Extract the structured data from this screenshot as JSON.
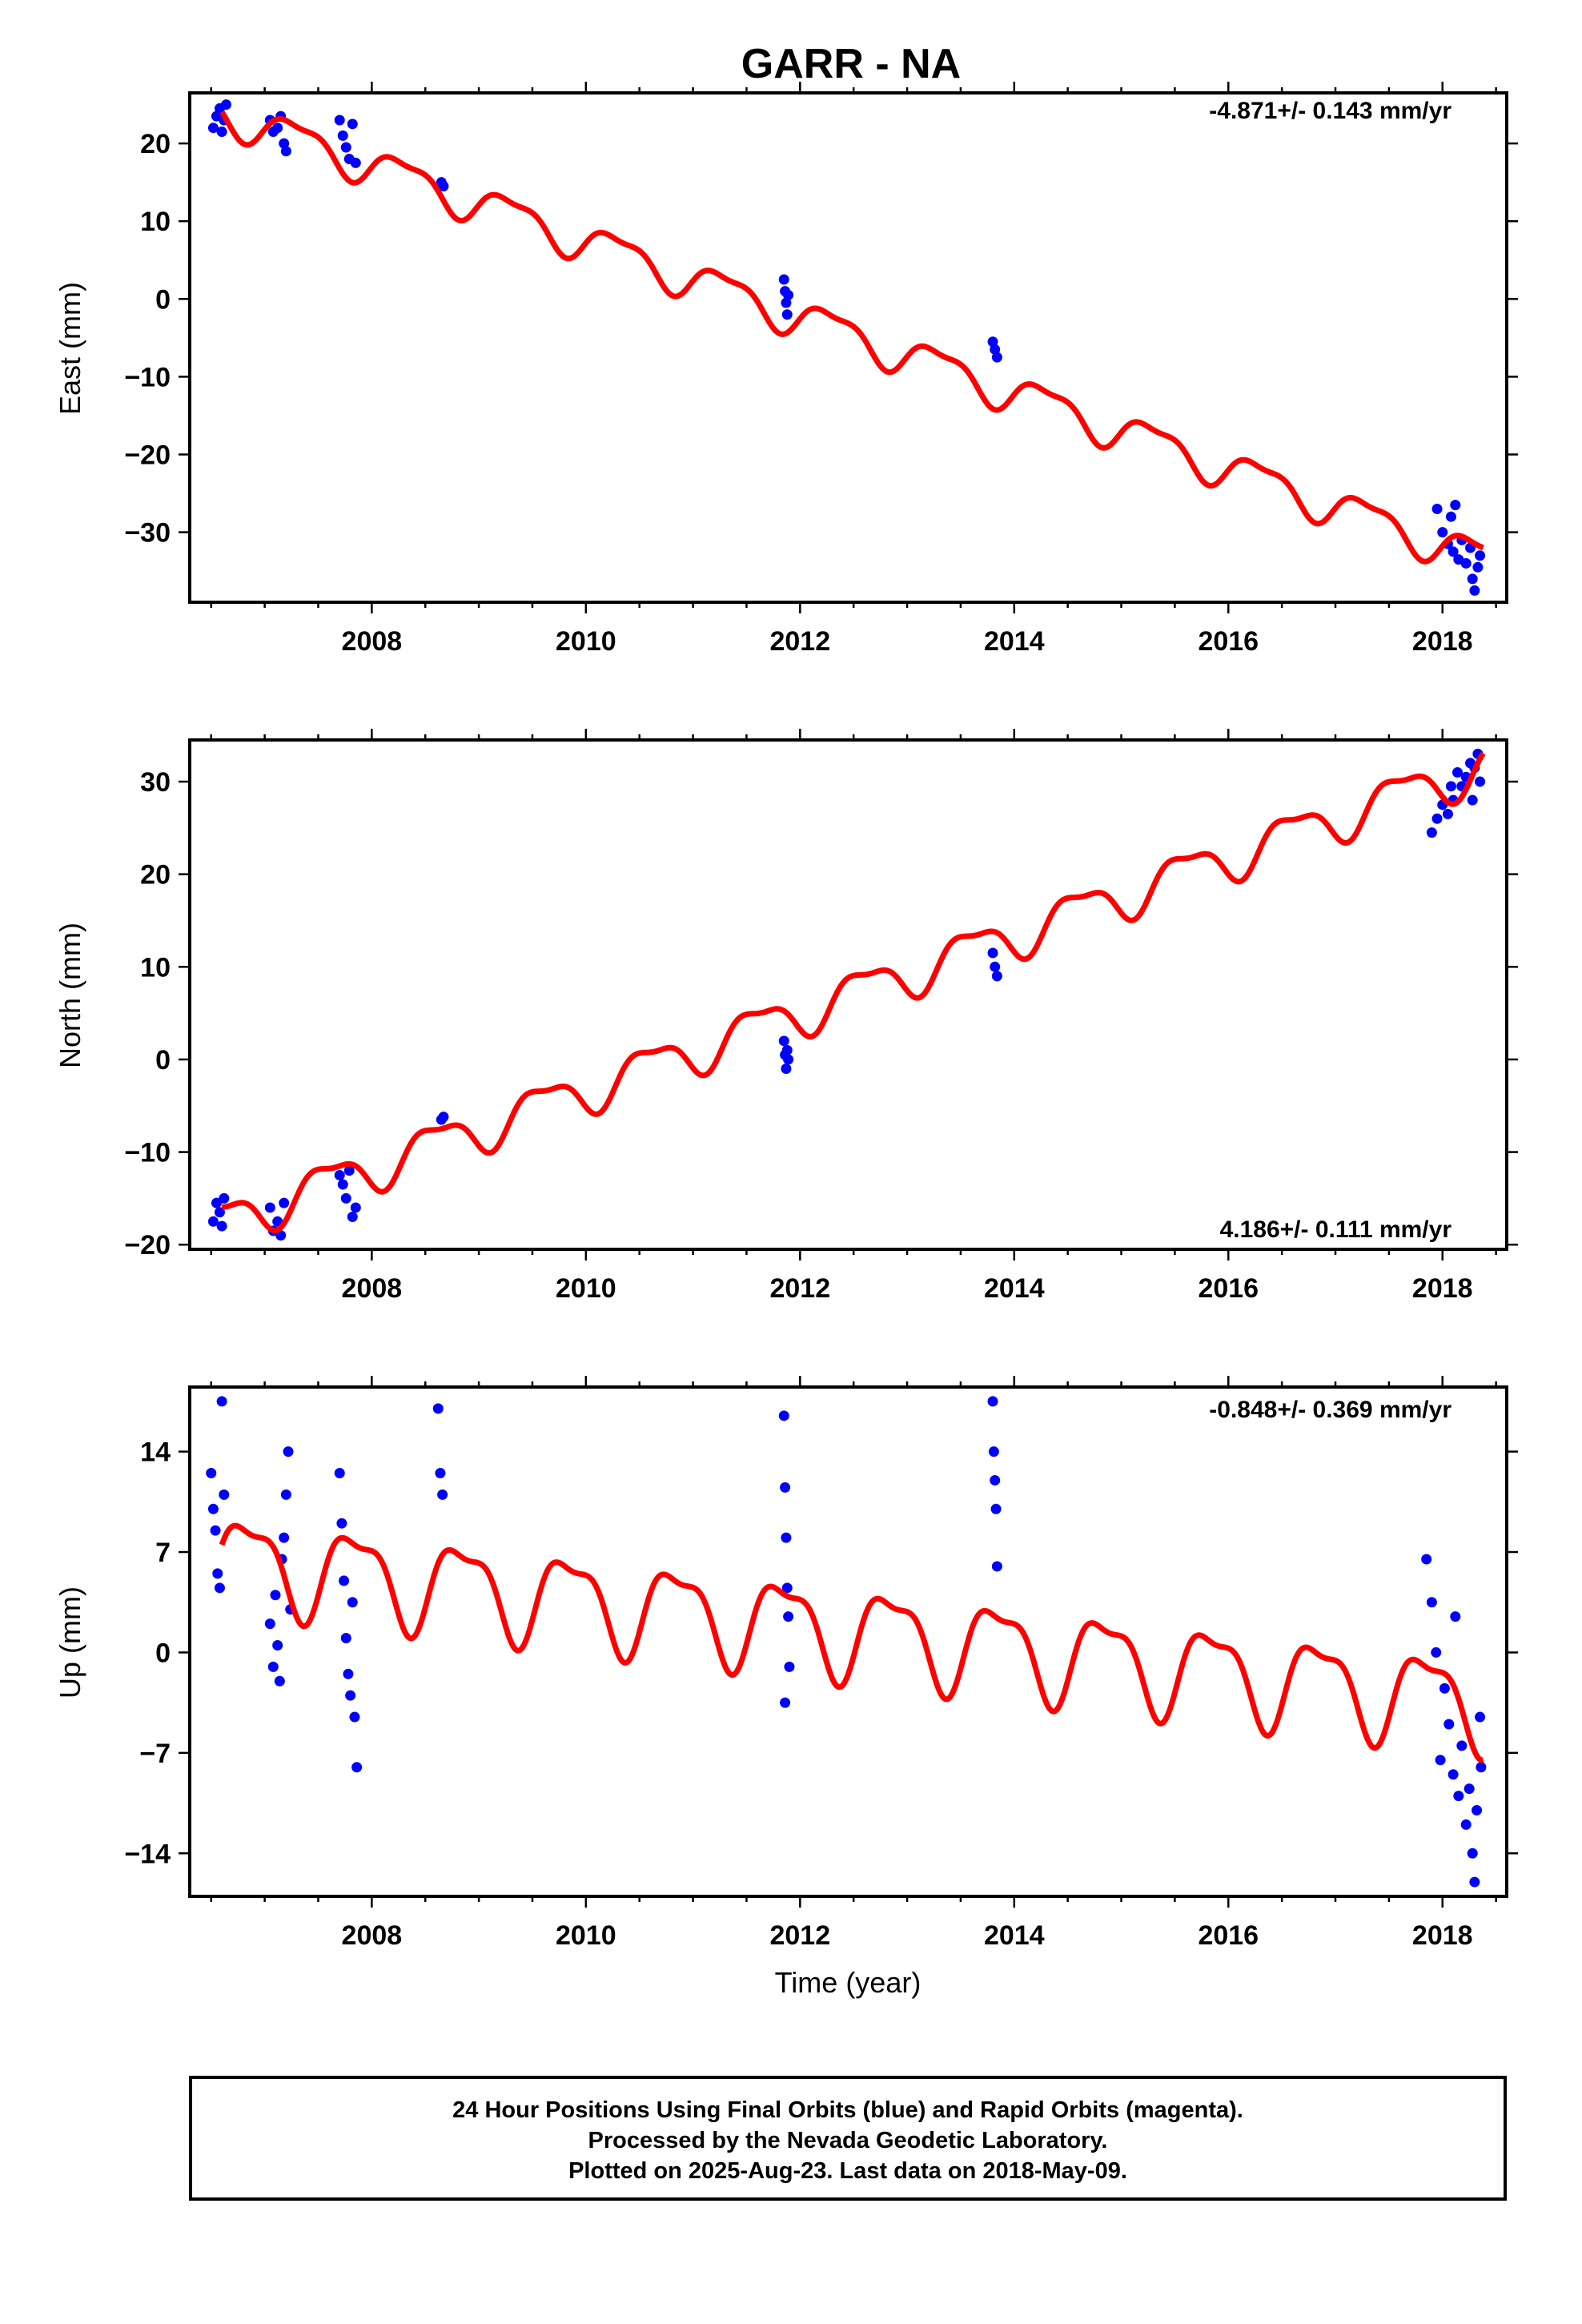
{
  "title": "GARR - NA",
  "xlabel": "Time (year)",
  "footer": {
    "line1": "24 Hour Positions Using Final Orbits (blue) and Rapid Orbits (magenta).",
    "line2": "Processed by the Nevada Geodetic Laboratory.",
    "line3": "Plotted on 2025-Aug-23. Last data on 2018-May-09."
  },
  "colors": {
    "points": "#0000ff",
    "model": "#ff0000",
    "axes": "#000000"
  },
  "chart_data": [
    {
      "type": "scatter",
      "component": "east",
      "ylabel": "East (mm)",
      "rate_text": "-4.871+/- 0.143 mm/yr",
      "rate_position": "top-right",
      "xlim": [
        2006.3,
        2018.6
      ],
      "ylim": [
        -39,
        26.5
      ],
      "xticks": [
        2008,
        2010,
        2012,
        2014,
        2016,
        2018
      ],
      "yticks": [
        -30,
        -20,
        -10,
        0,
        10,
        20
      ],
      "ytick_labels": [
        "−30",
        "−20",
        "−10",
        "0",
        "10",
        "20"
      ],
      "model": {
        "rate": -4.871,
        "t0": 2006.6,
        "intercept": 24.0,
        "seasonal_amp": 2.3,
        "seasonal_phase": 0.05
      },
      "series": [
        {
          "type": "scatter",
          "points": [
            [
              2006.52,
              22.0
            ],
            [
              2006.55,
              23.5
            ],
            [
              2006.58,
              24.5
            ],
            [
              2006.6,
              21.5
            ],
            [
              2006.62,
              23.0
            ],
            [
              2006.64,
              25.0
            ],
            [
              2007.05,
              23.0
            ],
            [
              2007.08,
              21.5
            ],
            [
              2007.12,
              22.0
            ],
            [
              2007.15,
              23.5
            ],
            [
              2007.18,
              20.0
            ],
            [
              2007.2,
              19.0
            ],
            [
              2007.7,
              23.0
            ],
            [
              2007.73,
              21.0
            ],
            [
              2007.76,
              19.5
            ],
            [
              2007.79,
              18.0
            ],
            [
              2007.82,
              22.5
            ],
            [
              2007.85,
              17.5
            ],
            [
              2008.65,
              15.0
            ],
            [
              2008.67,
              14.5
            ],
            [
              2011.85,
              2.5
            ],
            [
              2011.86,
              1.0
            ],
            [
              2011.87,
              -0.5
            ],
            [
              2011.88,
              -2.0
            ],
            [
              2011.89,
              0.5
            ],
            [
              2013.8,
              -5.5
            ],
            [
              2013.82,
              -6.5
            ],
            [
              2013.84,
              -7.5
            ],
            [
              2017.95,
              -27.0
            ],
            [
              2018.0,
              -30.0
            ],
            [
              2018.05,
              -31.5
            ],
            [
              2018.08,
              -28.0
            ],
            [
              2018.1,
              -32.5
            ],
            [
              2018.12,
              -26.5
            ],
            [
              2018.15,
              -33.5
            ],
            [
              2018.18,
              -31.0
            ],
            [
              2018.22,
              -34.0
            ],
            [
              2018.26,
              -32.0
            ],
            [
              2018.28,
              -36.0
            ],
            [
              2018.3,
              -37.5
            ],
            [
              2018.33,
              -34.5
            ],
            [
              2018.35,
              -33.0
            ]
          ]
        }
      ]
    },
    {
      "type": "scatter",
      "component": "north",
      "ylabel": "North (mm)",
      "rate_text": "4.186+/- 0.111 mm/yr",
      "rate_position": "bottom-right",
      "xlim": [
        2006.3,
        2018.6
      ],
      "ylim": [
        -20.5,
        34.5
      ],
      "xticks": [
        2008,
        2010,
        2012,
        2014,
        2016,
        2018
      ],
      "yticks": [
        -20,
        -10,
        0,
        10,
        20,
        30
      ],
      "ytick_labels": [
        "−20",
        "−10",
        "0",
        "10",
        "20",
        "30"
      ],
      "model": {
        "rate": 4.186,
        "t0": 2006.6,
        "intercept": -17.5,
        "seasonal_amp": 2.3,
        "seasonal_phase": 0.35
      },
      "series": [
        {
          "type": "scatter",
          "points": [
            [
              2006.52,
              -17.5
            ],
            [
              2006.55,
              -15.5
            ],
            [
              2006.58,
              -16.5
            ],
            [
              2006.6,
              -18.0
            ],
            [
              2006.62,
              -15.0
            ],
            [
              2007.05,
              -16.0
            ],
            [
              2007.08,
              -18.5
            ],
            [
              2007.12,
              -17.5
            ],
            [
              2007.15,
              -19.0
            ],
            [
              2007.18,
              -15.5
            ],
            [
              2007.7,
              -12.5
            ],
            [
              2007.73,
              -13.5
            ],
            [
              2007.76,
              -15.0
            ],
            [
              2007.79,
              -12.0
            ],
            [
              2007.82,
              -17.0
            ],
            [
              2007.85,
              -16.0
            ],
            [
              2008.65,
              -6.5
            ],
            [
              2008.67,
              -6.2
            ],
            [
              2011.85,
              2.0
            ],
            [
              2011.86,
              0.5
            ],
            [
              2011.87,
              -1.0
            ],
            [
              2011.88,
              1.0
            ],
            [
              2011.89,
              0.0
            ],
            [
              2013.8,
              11.5
            ],
            [
              2013.82,
              10.0
            ],
            [
              2013.84,
              9.0
            ],
            [
              2017.9,
              24.5
            ],
            [
              2017.95,
              26.0
            ],
            [
              2018.0,
              27.5
            ],
            [
              2018.05,
              26.5
            ],
            [
              2018.08,
              29.5
            ],
            [
              2018.1,
              28.0
            ],
            [
              2018.14,
              31.0
            ],
            [
              2018.18,
              29.5
            ],
            [
              2018.22,
              30.5
            ],
            [
              2018.26,
              32.0
            ],
            [
              2018.28,
              28.0
            ],
            [
              2018.3,
              31.5
            ],
            [
              2018.33,
              33.0
            ],
            [
              2018.35,
              30.0
            ]
          ]
        }
      ]
    },
    {
      "type": "scatter",
      "component": "up",
      "ylabel": "Up (mm)",
      "rate_text": "-0.848+/- 0.369 mm/yr",
      "rate_position": "top-right",
      "xlim": [
        2006.3,
        2018.6
      ],
      "ylim": [
        -17,
        18.5
      ],
      "xticks": [
        2008,
        2010,
        2012,
        2014,
        2016,
        2018
      ],
      "yticks": [
        -14,
        -7,
        0,
        7,
        14
      ],
      "ytick_labels": [
        "−14",
        "−7",
        "0",
        "7",
        "14"
      ],
      "model": {
        "rate": -0.848,
        "t0": 2006.6,
        "intercept": 6.5,
        "seasonal_amp": 3.0,
        "seasonal_phase": 0.6
      },
      "series": [
        {
          "type": "scatter",
          "points": [
            [
              2006.5,
              12.5
            ],
            [
              2006.52,
              10.0
            ],
            [
              2006.54,
              8.5
            ],
            [
              2006.56,
              5.5
            ],
            [
              2006.58,
              4.5
            ],
            [
              2006.6,
              17.5
            ],
            [
              2006.62,
              11.0
            ],
            [
              2007.05,
              2.0
            ],
            [
              2007.08,
              -1.0
            ],
            [
              2007.1,
              4.0
            ],
            [
              2007.12,
              0.5
            ],
            [
              2007.14,
              -2.0
            ],
            [
              2007.16,
              6.5
            ],
            [
              2007.18,
              8.0
            ],
            [
              2007.2,
              11.0
            ],
            [
              2007.22,
              14.0
            ],
            [
              2007.24,
              3.0
            ],
            [
              2007.7,
              12.5
            ],
            [
              2007.72,
              9.0
            ],
            [
              2007.74,
              5.0
            ],
            [
              2007.76,
              1.0
            ],
            [
              2007.78,
              -1.5
            ],
            [
              2007.8,
              -3.0
            ],
            [
              2007.82,
              3.5
            ],
            [
              2007.84,
              -4.5
            ],
            [
              2007.86,
              -8.0
            ],
            [
              2008.62,
              17.0
            ],
            [
              2008.64,
              12.5
            ],
            [
              2008.66,
              11.0
            ],
            [
              2011.85,
              16.5
            ],
            [
              2011.86,
              11.5
            ],
            [
              2011.87,
              8.0
            ],
            [
              2011.88,
              4.5
            ],
            [
              2011.89,
              2.5
            ],
            [
              2011.9,
              -1.0
            ],
            [
              2011.86,
              -3.5
            ],
            [
              2013.8,
              17.5
            ],
            [
              2013.81,
              14.0
            ],
            [
              2013.82,
              12.0
            ],
            [
              2013.83,
              10.0
            ],
            [
              2013.84,
              6.0
            ],
            [
              2017.85,
              6.5
            ],
            [
              2017.9,
              3.5
            ],
            [
              2017.94,
              0.0
            ],
            [
              2017.98,
              -7.5
            ],
            [
              2018.02,
              -2.5
            ],
            [
              2018.06,
              -5.0
            ],
            [
              2018.1,
              -8.5
            ],
            [
              2018.12,
              2.5
            ],
            [
              2018.15,
              -10.0
            ],
            [
              2018.18,
              -6.5
            ],
            [
              2018.22,
              -12.0
            ],
            [
              2018.25,
              -9.5
            ],
            [
              2018.28,
              -14.0
            ],
            [
              2018.3,
              -16.0
            ],
            [
              2018.32,
              -11.0
            ],
            [
              2018.35,
              -4.5
            ],
            [
              2018.36,
              -8.0
            ]
          ]
        }
      ]
    }
  ]
}
